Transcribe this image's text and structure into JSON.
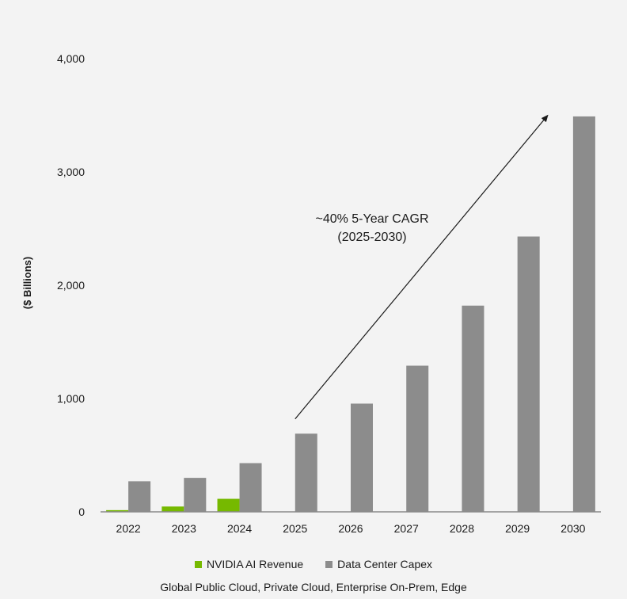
{
  "chart_data": {
    "type": "bar",
    "categories": [
      "2022",
      "2023",
      "2024",
      "2025",
      "2026",
      "2027",
      "2028",
      "2029",
      "2030"
    ],
    "series": [
      {
        "name": "NVIDIA AI Revenue",
        "color": "#76b900",
        "values": [
          15,
          47,
          115,
          null,
          null,
          null,
          null,
          null,
          null
        ]
      },
      {
        "name": "Data Center Capex",
        "color": "#8c8c8c",
        "values": [
          270,
          300,
          430,
          690,
          955,
          1290,
          1820,
          2430,
          3490
        ]
      }
    ],
    "ylabel": "($ Billions)",
    "ylim": [
      0,
      4000
    ],
    "yticks": [
      0,
      1000,
      2000,
      3000,
      4000
    ],
    "ytick_labels": [
      "0",
      "1,000",
      "2,000",
      "3,000",
      "4,000"
    ],
    "grid": false,
    "legend_position": "bottom-center",
    "annotation": {
      "line1": "~40% 5-Year CAGR",
      "line2": "(2025-2030)",
      "arrow_from": {
        "category": "2025",
        "value": 820
      },
      "arrow_to": {
        "category": "2030",
        "value": 3500
      }
    },
    "caption": "Global Public Cloud, Private Cloud, Enterprise On-Prem, Edge"
  }
}
